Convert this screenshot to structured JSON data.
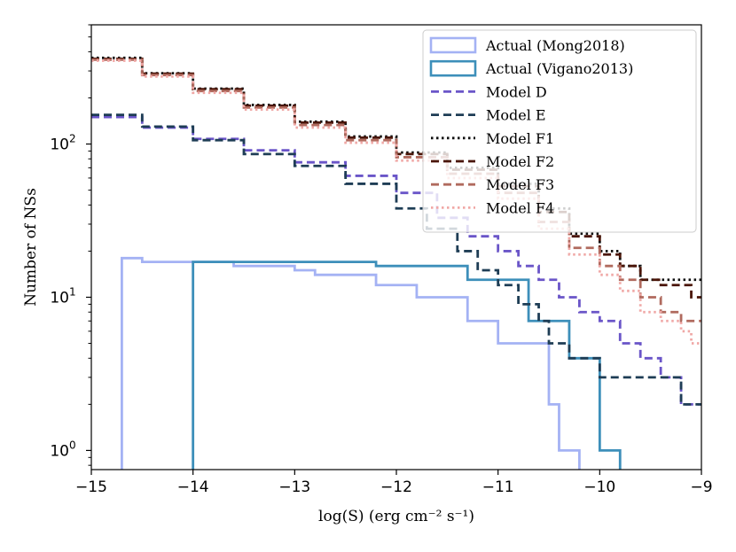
{
  "chart_data": {
    "type": "step-histogram",
    "yscale": "log",
    "xlabel": "log(S) (erg cm⁻² s⁻¹)",
    "ylabel": "Number of NSs",
    "xlim": [
      -15,
      -9
    ],
    "ylim": [
      0.75,
      600
    ],
    "x_ticks": [
      {
        "value": -15,
        "label": "−15"
      },
      {
        "value": -14,
        "label": "−14"
      },
      {
        "value": -13,
        "label": "−13"
      },
      {
        "value": -12,
        "label": "−12"
      },
      {
        "value": -11,
        "label": "−11"
      },
      {
        "value": -10,
        "label": "−10"
      },
      {
        "value": -9,
        "label": "−9"
      }
    ],
    "y_ticks": [
      {
        "value": 1,
        "base": "10",
        "exp": "0"
      },
      {
        "value": 10,
        "base": "10",
        "exp": "1"
      },
      {
        "value": 100,
        "base": "10",
        "exp": "2"
      }
    ],
    "legend_position": "upper-right",
    "series": [
      {
        "name": "Actual (Mong2018)",
        "color": "#a4b2f4",
        "dash": "solid",
        "role": "actual",
        "x": [
          -14.7,
          -14.5,
          -14.2,
          -13.6,
          -13.0,
          -12.8,
          -12.2,
          -11.8,
          -11.3,
          -11.0,
          -10.8,
          -10.5,
          -10.4,
          -10.2
        ],
        "y": [
          18,
          17,
          17,
          16,
          15,
          14,
          12,
          10,
          7,
          5,
          5,
          2,
          1,
          1
        ]
      },
      {
        "name": "Actual (Vigano2013)",
        "color": "#3d8fba",
        "dash": "solid",
        "role": "actual",
        "x": [
          -14.0,
          -12.2,
          -11.3,
          -10.7,
          -10.3,
          -10.0,
          -9.8
        ],
        "y": [
          17,
          16,
          13,
          7,
          4,
          1,
          1
        ]
      },
      {
        "name": "Model D",
        "color": "#6a55c8",
        "dash": "dashed",
        "role": "model",
        "x": [
          -15.0,
          -14.5,
          -14.0,
          -13.5,
          -13.0,
          -12.5,
          -12.0,
          -11.6,
          -11.3,
          -11.0,
          -10.8,
          -10.6,
          -10.4,
          -10.2,
          -10.0,
          -9.8,
          -9.6,
          -9.4,
          -9.2,
          -9.1
        ],
        "y": [
          150,
          128,
          108,
          91,
          76,
          62,
          48,
          33,
          25,
          20,
          16,
          13,
          10,
          8,
          7,
          5,
          4,
          3,
          2,
          2
        ]
      },
      {
        "name": "Model E",
        "color": "#1e3d55",
        "dash": "dashed",
        "role": "model",
        "x": [
          -15.0,
          -14.5,
          -14.0,
          -13.5,
          -13.0,
          -12.5,
          -12.0,
          -11.7,
          -11.4,
          -11.2,
          -11.0,
          -10.8,
          -10.6,
          -10.5,
          -10.3,
          -10.0,
          -9.8,
          -9.6,
          -9.4,
          -9.2,
          -9.1
        ],
        "y": [
          155,
          130,
          106,
          86,
          72,
          55,
          38,
          28,
          20,
          15,
          12,
          9,
          7,
          5,
          4,
          3,
          3,
          3,
          3,
          2,
          2
        ]
      },
      {
        "name": "Model F1",
        "color": "#111111",
        "dash": "dotted",
        "role": "model",
        "x": [
          -15.0,
          -14.5,
          -14.0,
          -13.5,
          -13.0,
          -12.5,
          -12.0,
          -11.5,
          -11.0,
          -10.6,
          -10.3,
          -10.0,
          -9.8,
          -9.6,
          -9.4,
          -9.2,
          -9.1
        ],
        "y": [
          365,
          290,
          230,
          180,
          140,
          112,
          88,
          70,
          55,
          38,
          26,
          20,
          16,
          13,
          13,
          13,
          13
        ]
      },
      {
        "name": "Model F2",
        "color": "#4a1508",
        "dash": "dashed",
        "role": "model",
        "x": [
          -15.0,
          -14.5,
          -14.0,
          -13.5,
          -13.0,
          -12.5,
          -12.0,
          -11.5,
          -11.0,
          -10.6,
          -10.3,
          -10.0,
          -9.8,
          -9.6,
          -9.4,
          -9.2,
          -9.1
        ],
        "y": [
          360,
          288,
          228,
          178,
          138,
          110,
          86,
          68,
          53,
          36,
          25,
          19,
          16,
          13,
          12,
          12,
          10
        ]
      },
      {
        "name": "Model F3",
        "color": "#b06a5e",
        "dash": "dashed",
        "role": "model",
        "x": [
          -15.0,
          -14.5,
          -14.0,
          -13.5,
          -13.0,
          -12.5,
          -12.0,
          -11.5,
          -11.0,
          -10.6,
          -10.3,
          -10.0,
          -9.8,
          -9.6,
          -9.4,
          -9.2,
          -9.1
        ],
        "y": [
          355,
          282,
          222,
          173,
          133,
          106,
          82,
          64,
          48,
          31,
          21,
          16,
          13,
          10,
          8,
          7,
          7
        ]
      },
      {
        "name": "Model F4",
        "color": "#f0a8a6",
        "dash": "dotted",
        "role": "model",
        "x": [
          -15.0,
          -14.5,
          -14.0,
          -13.5,
          -13.0,
          -12.5,
          -12.0,
          -11.5,
          -11.0,
          -10.6,
          -10.3,
          -10.0,
          -9.8,
          -9.6,
          -9.4,
          -9.2,
          -9.1
        ],
        "y": [
          350,
          276,
          216,
          168,
          128,
          102,
          78,
          60,
          44,
          28,
          19,
          14,
          11,
          8,
          7,
          6,
          5
        ]
      }
    ]
  }
}
